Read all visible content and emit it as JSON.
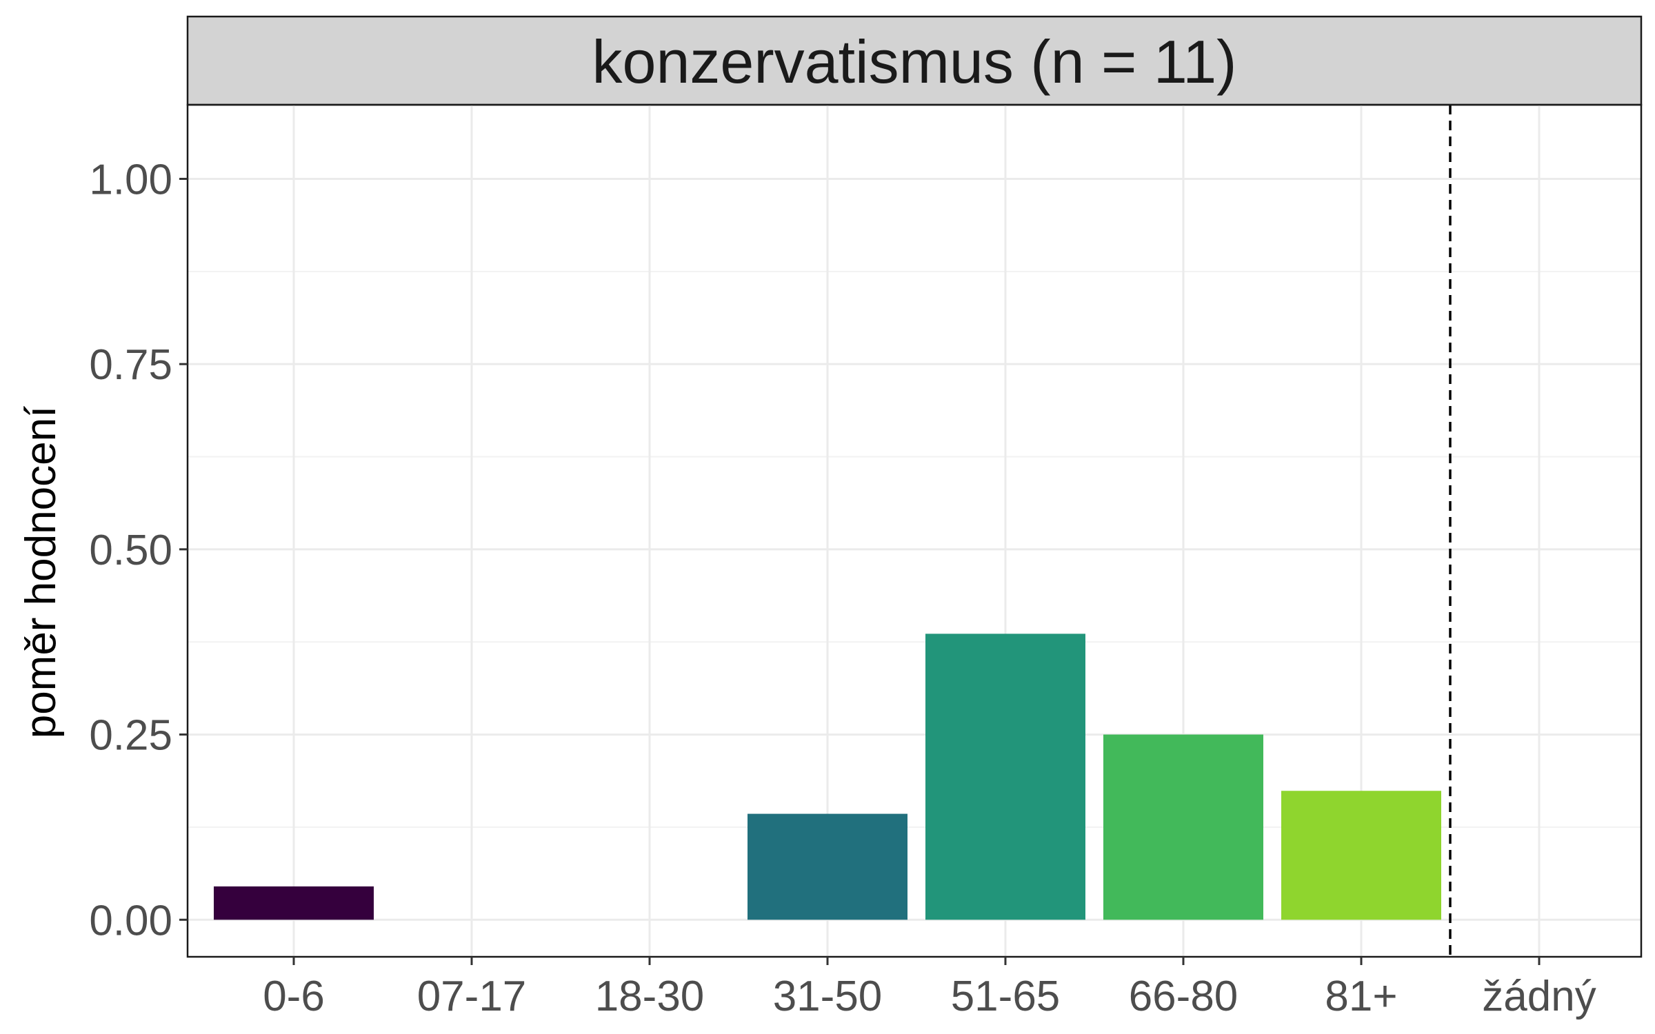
{
  "chart_data": {
    "type": "bar",
    "facet_label": "konzervatismus (n = 11)",
    "title": "",
    "xlabel": "",
    "ylabel": "poměr hodnocení",
    "categories": [
      "0-6",
      "07-17",
      "18-30",
      "31-50",
      "51-65",
      "66-80",
      "81+",
      "žádný"
    ],
    "values": [
      0.045,
      0,
      0,
      0.143,
      0.386,
      0.25,
      0.174,
      0
    ],
    "bar_colors": [
      "#35003d",
      "#3b528b",
      "#2c728e",
      "#21707d",
      "#22957a",
      "#42b95a",
      "#8fd52e",
      "#fde725"
    ],
    "ylim": [
      -0.05,
      1.1
    ],
    "yticks": [
      0,
      0.25,
      0.5,
      0.75,
      1
    ],
    "ytick_labels": [
      "0.00",
      "0.25",
      "0.50",
      "0.75",
      "1.00"
    ],
    "reference_line": {
      "position": "between 81+ and žádný",
      "style": "dashed",
      "color": "#000000"
    },
    "grid": true,
    "legend": "none",
    "colors": {
      "panel_border": "#1a1a1a",
      "strip_fill": "#d3d3d3",
      "grid_major": "#ebebeb",
      "grid_minor": "#f2f2f2",
      "tick_text": "#4d4d4d"
    }
  }
}
